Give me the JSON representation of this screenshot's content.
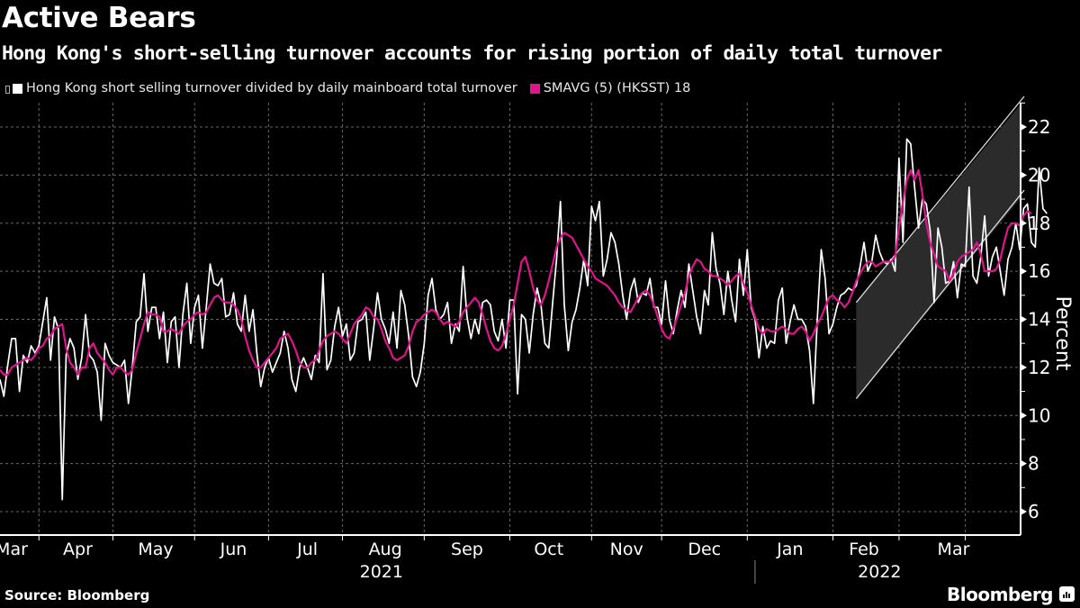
{
  "header": {
    "title": "Active Bears",
    "subtitle": "Hong Kong's short-selling turnover accounts for rising portion of daily total turnover"
  },
  "legend": {
    "items": [
      {
        "label": "Hong Kong short selling turnover divided by daily mainboard total turnover",
        "color": "#ffffff",
        "icon": "square-icon"
      },
      {
        "label": "SMAVG (5) (HKSST) 18",
        "color": "#e0148c",
        "icon": "square-icon"
      }
    ]
  },
  "footer": {
    "source": "Source: Bloomberg",
    "brand": "Bloomberg"
  },
  "chart_data": {
    "type": "line",
    "title": "Active Bears",
    "subtitle": "Hong Kong's short-selling turnover accounts for rising portion of daily total turnover",
    "xlabel": "",
    "ylabel": "Percent",
    "ylim": [
      5,
      23
    ],
    "yticks": [
      6,
      8,
      10,
      12,
      14,
      16,
      18,
      20,
      22
    ],
    "grid": true,
    "legend_position": "top-left",
    "x_month_labels": [
      "Mar",
      "Apr",
      "May",
      "Jun",
      "Jul",
      "Aug",
      "Sep",
      "Oct",
      "Nov",
      "Dec",
      "Jan",
      "Feb",
      "Mar"
    ],
    "x_year_labels": [
      "2021",
      "2022"
    ],
    "x_domain": [
      0,
      262
    ],
    "month_boundaries": [
      10,
      29,
      50,
      69,
      88,
      109,
      131,
      152,
      170,
      192,
      214,
      231,
      248
    ],
    "month_label_centers": [
      3,
      20,
      40,
      60,
      79,
      99,
      120,
      141,
      161,
      181,
      203,
      222,
      245
    ],
    "year_label_centers": [
      98,
      226
    ],
    "year_divider": 194,
    "annotation": {
      "type": "rising-channel",
      "x": [
        220,
        262
      ],
      "upper_start": 14.7,
      "upper_end": 22.9,
      "lower_start": 10.7,
      "lower_end": 19.0
    },
    "series": [
      {
        "name": "Hong Kong short selling turnover divided by daily mainboard total turnover",
        "color": "#ffffff",
        "values": [
          11.5,
          10.8,
          12.1,
          13.2,
          13.2,
          11.0,
          12.5,
          12.2,
          12.9,
          12.6,
          12.9,
          13.9,
          14.9,
          12.3,
          14.1,
          13.6,
          6.5,
          12.5,
          13.2,
          12.8,
          11.5,
          12.4,
          14.2,
          12.5,
          12.3,
          11.8,
          9.8,
          13.0,
          12.5,
          12.2,
          12.1,
          12.0,
          12.3,
          10.5,
          12.0,
          13.9,
          14.1,
          15.9,
          13.5,
          14.5,
          14.5,
          13.2,
          14.3,
          12.2,
          13.9,
          14.1,
          12.0,
          14.2,
          15.5,
          13.0,
          14.5,
          15.0,
          12.8,
          14.5,
          16.3,
          15.5,
          15.4,
          15.7,
          14.1,
          14.2,
          15.1,
          13.8,
          13.5,
          15.0,
          13.5,
          14.4,
          12.6,
          11.2,
          12.0,
          12.4,
          11.8,
          12.2,
          12.6,
          13.5,
          12.8,
          11.5,
          11.0,
          12.0,
          12.4,
          12.0,
          11.5,
          12.5,
          12.2,
          15.9,
          11.9,
          12.3,
          13.7,
          14.5,
          13.3,
          13.8,
          12.3,
          12.6,
          13.9,
          14.0,
          14.3,
          12.3,
          13.6,
          15.1,
          14.0,
          13.6,
          13.0,
          14.3,
          12.8,
          15.2,
          14.6,
          13.3,
          11.6,
          11.2,
          11.8,
          13.0,
          15.0,
          15.7,
          14.4,
          14.0,
          14.2,
          14.7,
          13.0,
          13.8,
          13.5,
          16.2,
          14.1,
          13.2,
          14.0,
          13.4,
          14.7,
          14.8,
          14.6,
          13.5,
          13.1,
          14.0,
          12.8,
          14.8,
          14.8,
          10.9,
          14.2,
          14.0,
          12.6,
          14.2,
          15.3,
          14.6,
          13.0,
          12.8,
          14.7,
          16.5,
          18.9,
          14.6,
          12.7,
          13.9,
          14.4,
          15.3,
          16.5,
          15.4,
          18.7,
          18.1,
          18.9,
          15.8,
          16.5,
          17.6,
          17.2,
          16.3,
          15.0,
          14.0,
          15.2,
          15.7,
          14.7,
          15.1,
          15.0,
          15.7,
          14.5,
          14.5,
          13.8,
          15.6,
          14.0,
          13.4,
          14.4,
          15.2,
          14.5,
          16.3,
          15.2,
          14.1,
          13.4,
          15.2,
          14.6,
          17.6,
          16.1,
          15.5,
          14.2,
          16.0,
          14.8,
          13.9,
          16.5,
          15.0,
          16.9,
          14.5,
          14.0,
          12.4,
          13.7,
          12.8,
          13.1,
          13.0,
          14.8,
          15.3,
          13.0,
          13.9,
          14.6,
          14.0,
          14.0,
          13.7,
          12.7,
          10.5,
          14.0,
          16.9,
          15.7,
          13.4,
          13.8,
          14.5,
          15.0,
          15.1,
          15.3,
          15.2,
          15.4,
          16.2,
          17.2,
          16.0,
          16.4,
          17.5,
          16.8,
          16.4,
          16.3,
          16.5,
          16.0,
          20.7,
          17.2,
          21.5,
          21.3,
          19.5,
          17.8,
          19.0,
          18.8,
          17.7,
          14.7,
          17.8,
          17.0,
          15.5,
          15.6,
          16.4,
          14.9,
          16.3,
          16.2,
          19.5,
          15.8,
          15.5,
          16.6,
          18.3,
          15.8,
          16.6,
          17.0,
          16.0,
          15.0,
          16.5,
          17.0,
          18.0,
          16.9,
          18.6,
          18.8,
          17.2,
          17.0,
          20.3,
          18.6,
          18.4
        ]
      },
      {
        "name": "SMAVG (5) (HKSST)",
        "last_value": 18,
        "color": "#e0148c",
        "values": [
          11.9,
          11.7,
          11.7,
          12.0,
          12.1,
          12.2,
          12.3,
          12.4,
          12.3,
          12.5,
          12.8,
          12.9,
          13.2,
          13.3,
          13.6,
          13.7,
          13.8,
          12.8,
          12.2,
          12.0,
          11.7,
          12.0,
          12.0,
          12.8,
          13.0,
          12.6,
          12.4,
          12.2,
          11.9,
          11.7,
          12.0,
          12.0,
          11.8,
          11.7,
          11.9,
          12.6,
          13.2,
          13.8,
          14.3,
          14.2,
          14.2,
          14.1,
          13.5,
          13.5,
          13.6,
          13.5,
          13.4,
          13.7,
          13.9,
          14.0,
          14.2,
          14.3,
          14.2,
          14.3,
          14.6,
          14.9,
          15.0,
          14.8,
          14.7,
          14.7,
          14.6,
          14.4,
          14.0,
          13.3,
          12.7,
          12.3,
          12.0,
          12.0,
          12.2,
          12.4,
          12.6,
          12.8,
          13.2,
          13.3,
          13.4,
          13.1,
          12.7,
          12.2,
          12.0,
          12.0,
          12.2,
          12.3,
          12.7,
          13.1,
          13.3,
          13.4,
          13.5,
          13.4,
          13.2,
          13.0,
          13.4,
          13.8,
          14.0,
          14.2,
          14.5,
          14.4,
          14.1,
          14.0,
          13.6,
          13.1,
          12.8,
          12.4,
          12.3,
          12.4,
          12.5,
          12.9,
          13.5,
          13.9,
          14.0,
          14.2,
          14.3,
          14.4,
          14.3,
          14.0,
          13.8,
          13.9,
          13.8,
          13.7,
          13.9,
          14.3,
          14.5,
          14.7,
          14.9,
          14.7,
          14.2,
          13.6,
          13.1,
          12.8,
          12.7,
          12.9,
          13.4,
          14.0,
          14.6,
          15.5,
          16.4,
          16.6,
          16.0,
          15.3,
          14.8,
          14.6,
          15.0,
          15.6,
          16.3,
          17.0,
          17.4,
          17.6,
          17.5,
          17.4,
          17.1,
          16.8,
          16.5,
          16.2,
          16.0,
          15.7,
          15.6,
          15.5,
          15.4,
          15.2,
          15.0,
          14.7,
          14.5,
          14.4,
          14.3,
          14.6,
          14.9,
          15.1,
          15.2,
          15.0,
          14.6,
          14.1,
          13.6,
          13.3,
          13.2,
          13.6,
          14.1,
          14.6,
          15.1,
          15.8,
          16.2,
          16.5,
          16.4,
          16.1,
          16.0,
          15.8,
          15.8,
          15.7,
          15.6,
          15.4,
          15.6,
          15.8,
          15.9,
          15.5,
          15.1,
          14.6,
          14.1,
          13.6,
          13.4,
          13.6,
          13.5,
          13.5,
          13.6,
          13.7,
          13.6,
          13.4,
          13.4,
          13.6,
          13.7,
          13.5,
          13.1,
          13.4,
          13.8,
          14.1,
          14.5,
          14.9,
          15.0,
          14.8,
          14.7,
          14.5,
          14.7,
          15.1,
          15.6,
          15.9,
          16.2,
          16.4,
          16.4,
          16.2,
          16.3,
          16.4,
          16.4,
          16.4,
          16.6,
          17.8,
          18.9,
          19.8,
          20.2,
          19.8,
          20.2,
          19.2,
          18.0,
          17.2,
          16.7,
          16.2,
          16.1,
          16.0,
          15.6,
          15.9,
          16.4,
          16.6,
          16.7,
          16.8,
          16.9,
          17.2,
          16.7,
          16.0,
          16.0,
          16.0,
          16.1,
          16.5,
          17.2,
          17.8,
          18.0,
          18.0,
          17.9,
          18.3,
          18.5,
          18.4
        ]
      }
    ]
  }
}
